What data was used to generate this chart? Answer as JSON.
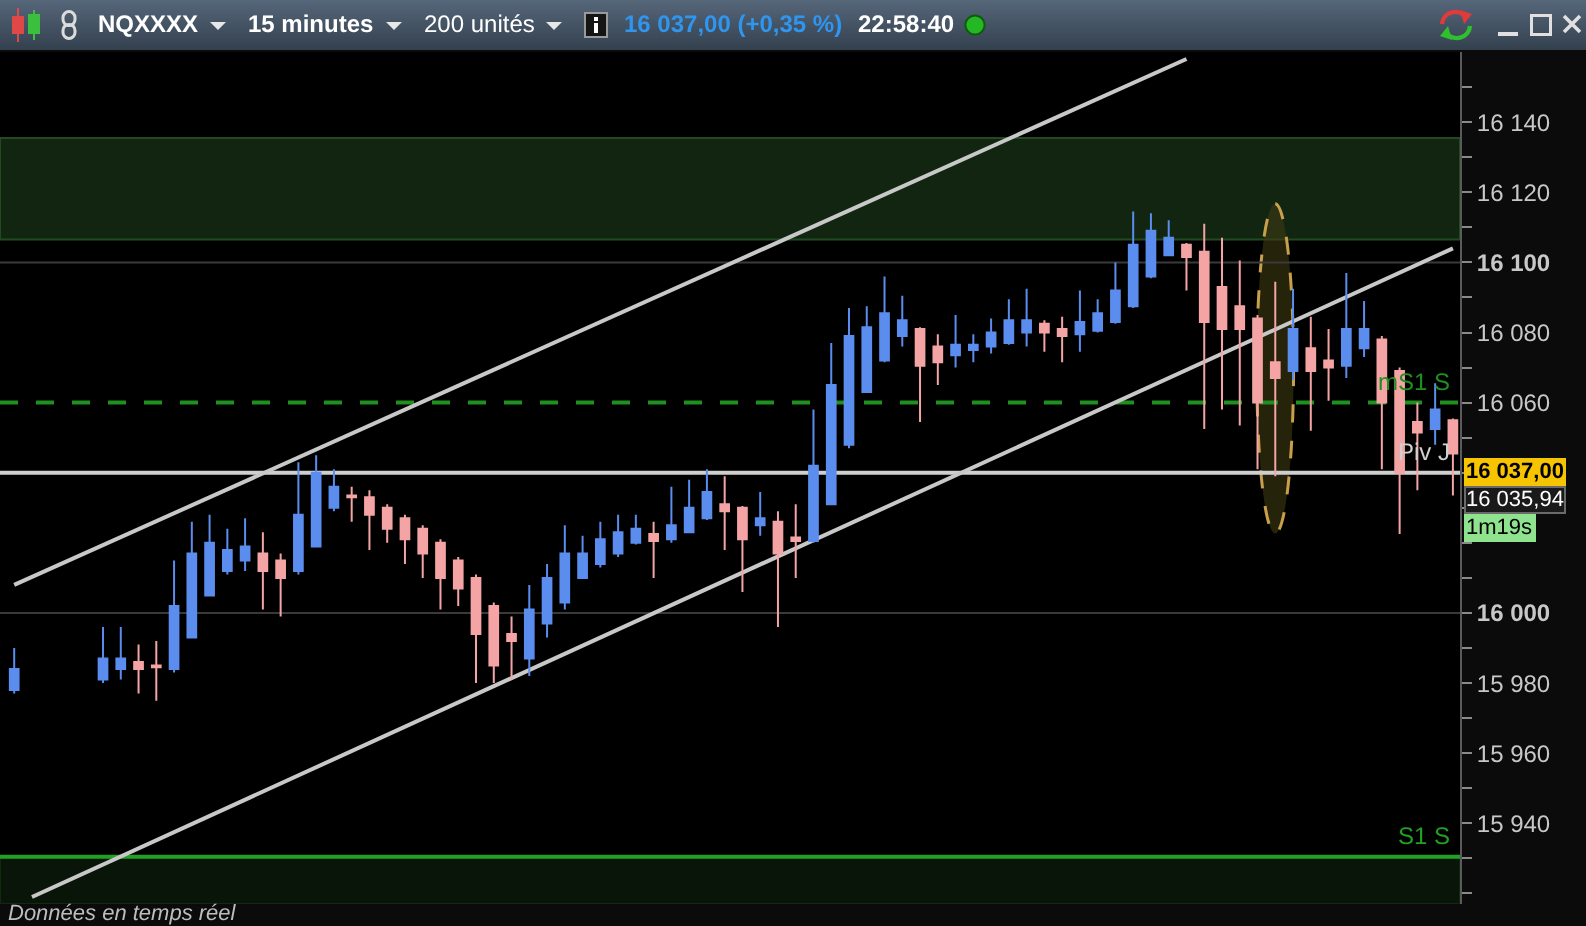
{
  "chart_data": {
    "type": "candlestick",
    "title": "NQXXXX",
    "categories": [
      null,
      null,
      null,
      null,
      null,
      null,
      null,
      null,
      null,
      null,
      null,
      null,
      null,
      null,
      null,
      null,
      null,
      null,
      null,
      null,
      null,
      null,
      null,
      null,
      null,
      null,
      null,
      null,
      null,
      null,
      null,
      null,
      null,
      null,
      null,
      null,
      null,
      null,
      null,
      null,
      null,
      null,
      null,
      null,
      null,
      null,
      null,
      null,
      null,
      null,
      null,
      null,
      null,
      null,
      null,
      null,
      null,
      null,
      null,
      null,
      null,
      null,
      null,
      null,
      null,
      null,
      null,
      null,
      null,
      null,
      null,
      null,
      null,
      null,
      null,
      null,
      null,
      null,
      null,
      null,
      null,
      null
    ],
    "ohlc": [
      [
        15978,
        15990,
        15977,
        15984
      ],
      null,
      null,
      null,
      null,
      [
        15981,
        15996,
        15980,
        15987
      ],
      [
        15984,
        15996,
        15981,
        15987
      ],
      [
        15986,
        15991,
        15977,
        15984
      ],
      [
        15985,
        15992,
        15975,
        15984.5
      ],
      [
        15984,
        16015,
        15983,
        16002
      ],
      [
        15993,
        16026,
        15993,
        16017
      ],
      [
        16005,
        16028,
        16005,
        16020
      ],
      [
        16012,
        16024,
        16011,
        16018
      ],
      [
        16015,
        16027,
        16012,
        16019
      ],
      [
        16017,
        16023,
        16001,
        16012
      ],
      [
        16015,
        16017,
        15999,
        16010
      ],
      [
        16012,
        16043,
        16011,
        16028
      ],
      [
        16019,
        16045,
        16019,
        16040
      ],
      [
        16030,
        16041,
        16029,
        16036
      ],
      [
        16033.5,
        16036,
        16026,
        16033
      ],
      [
        16033,
        16035,
        16018,
        16028
      ],
      [
        16030,
        16031,
        16020,
        16024
      ],
      [
        16027,
        16028,
        16014,
        16021
      ],
      [
        16024,
        16025,
        16010,
        16017
      ],
      [
        16020,
        16021,
        16001,
        16010
      ],
      [
        16015,
        16016,
        16002,
        16007
      ],
      [
        16010,
        16011,
        15980,
        15994
      ],
      [
        16002,
        16003,
        15980,
        15985
      ],
      [
        15994,
        15999,
        15981,
        15992
      ],
      [
        15987,
        16008,
        15982,
        16001
      ],
      [
        15997,
        16014,
        15993,
        16010
      ],
      [
        16003,
        16025,
        16001,
        16017
      ],
      [
        16010,
        16022,
        16010,
        16017
      ],
      [
        16014,
        16026,
        16013,
        16021
      ],
      [
        16017,
        16028,
        16016,
        16023
      ],
      [
        16020,
        16028,
        16019.5,
        16024
      ],
      [
        16022.5,
        16026,
        16010,
        16020.5
      ],
      [
        16021,
        16036,
        16020,
        16025
      ],
      [
        16023,
        16038,
        16023,
        16030
      ],
      [
        16027,
        16041,
        16026.5,
        16034.5
      ],
      [
        16031,
        16039,
        16018,
        16029
      ],
      [
        16030,
        16030.5,
        16006,
        16021
      ],
      [
        16025,
        16034.5,
        16022,
        16027
      ],
      [
        16026,
        16029,
        15996,
        16017
      ],
      [
        16021.5,
        16031,
        16010,
        16020.5
      ],
      [
        16020.5,
        16058,
        16020,
        16042
      ],
      [
        16031,
        16077,
        16031,
        16065
      ],
      [
        16048,
        16087,
        16047,
        16079
      ],
      [
        16063,
        16087.5,
        16063,
        16081.5
      ],
      [
        16072,
        16096,
        16071.5,
        16085.5
      ],
      [
        16079,
        16090.5,
        16076,
        16083.5
      ],
      [
        16081,
        16081.5,
        16054.5,
        16070.5
      ],
      [
        16076,
        16079.5,
        16065,
        16071.5
      ],
      [
        16073.5,
        16085,
        16070,
        16076.5
      ],
      [
        16075,
        16079.5,
        16071.5,
        16076.5
      ],
      [
        16076,
        16084,
        16074,
        16080
      ],
      [
        16077,
        16089.5,
        16076.5,
        16083.5
      ],
      [
        16080,
        16092.5,
        16076,
        16083.5
      ],
      [
        16082.5,
        16083.5,
        16074.5,
        16080
      ],
      [
        16081,
        16084.5,
        16071.5,
        16079
      ],
      [
        16079.5,
        16092,
        16074.5,
        16083
      ],
      [
        16080.5,
        16089.5,
        16080,
        16085.5
      ],
      [
        16083,
        16100,
        16082.5,
        16092
      ],
      [
        16087.5,
        16114.5,
        16087,
        16105
      ],
      [
        16096,
        16114,
        16095.5,
        16109
      ],
      [
        16102,
        16112,
        16102,
        16107
      ],
      [
        16105,
        16105.5,
        16092,
        16101.5
      ],
      [
        16103,
        16111,
        16052.5,
        16083
      ],
      [
        16093,
        16107,
        16058,
        16081
      ],
      [
        16087.5,
        16100.5,
        16053.5,
        16081
      ],
      [
        16084,
        16085,
        16041,
        16060
      ],
      [
        16071.5,
        16094.5,
        16039,
        16067
      ],
      [
        16069,
        16092.5,
        16066.5,
        16081
      ],
      [
        16075.5,
        16084.5,
        16052,
        16069
      ],
      [
        16072,
        16081,
        16060.5,
        16070
      ],
      [
        16070.5,
        16097,
        16067,
        16081
      ],
      [
        16075.5,
        16089,
        16073,
        16081
      ],
      [
        16078,
        16079,
        16041,
        16060
      ],
      [
        16069,
        16070,
        16022.5,
        16040
      ],
      [
        16054.5,
        16060,
        16035,
        16051.5
      ],
      [
        16052.5,
        16065.5,
        16048,
        16058
      ],
      [
        16055,
        16055.5,
        16033.5,
        16045.5
      ]
    ],
    "colors": [
      "#5b8def",
      null,
      null,
      null,
      null,
      "#5b8def",
      "#5b8def",
      "#f4a4a4",
      "#f4a4a4",
      "#5b8def",
      "#5b8def",
      "#5b8def",
      "#5b8def",
      "#5b8def",
      "#f4a4a4",
      "#f4a4a4",
      "#5b8def",
      "#5b8def",
      "#5b8def",
      "#f4a4a4",
      "#f4a4a4",
      "#f4a4a4",
      "#f4a4a4",
      "#f4a4a4",
      "#f4a4a4",
      "#f4a4a4",
      "#f4a4a4",
      "#f4a4a4",
      "#f4a4a4",
      "#5b8def",
      "#5b8def",
      "#5b8def",
      "#5b8def",
      "#5b8def",
      "#5b8def",
      "#5b8def",
      "#f4a4a4",
      "#5b8def",
      "#5b8def",
      "#5b8def",
      "#f4a4a4",
      "#f4a4a4",
      "#5b8def",
      "#f4a4a4",
      "#f4a4a4",
      "#5b8def",
      "#5b8def",
      "#5b8def",
      "#5b8def",
      "#5b8def",
      "#5b8def",
      "#f4a4a4",
      "#f4a4a4",
      "#5b8def",
      "#5b8def",
      "#5b8def",
      "#5b8def",
      "#5b8def",
      "#f4a4a4",
      "#f4a4a4",
      "#5b8def",
      "#5b8def",
      "#5b8def",
      "#5b8def",
      "#5b8def",
      "#5b8def",
      "#f4a4a4",
      "#f4a4a4",
      "#f4a4a4",
      "#f4a4a4",
      "#f4a4a4",
      "#f4a4a4",
      "#5b8def",
      "#f4a4a4",
      "#f4a4a4",
      "#5b8def",
      "#5b8def",
      "#f4a4a4",
      "#f4a4a4",
      "#f4a4a4",
      "#5b8def",
      "#f4a4a4"
    ],
    "series": [
      {
        "type": "line",
        "color": "#c8c8c8",
        "values": [
          16008,
          null,
          null,
          null,
          null,
          null,
          null,
          null,
          null,
          null,
          null,
          null,
          null,
          null,
          null,
          null,
          null,
          null,
          null,
          null,
          null,
          null,
          null,
          null,
          null,
          null,
          null,
          null,
          null,
          null,
          null,
          null,
          null,
          null,
          null,
          null,
          null,
          null,
          null,
          null,
          null,
          null,
          null,
          null,
          null,
          null,
          null,
          null,
          null,
          null,
          null,
          null,
          null,
          null,
          null,
          null,
          null,
          null,
          null,
          null,
          null,
          null,
          null,
          null,
          null,
          null,
          16158,
          null,
          null,
          null,
          null,
          null,
          null,
          null,
          null,
          null,
          null,
          null,
          null,
          null,
          null,
          null
        ]
      },
      {
        "type": "line",
        "color": "#c8c8c8",
        "values": [
          null,
          15919,
          null,
          null,
          null,
          null,
          null,
          null,
          null,
          null,
          null,
          null,
          null,
          null,
          null,
          null,
          null,
          null,
          null,
          null,
          null,
          null,
          null,
          null,
          null,
          null,
          null,
          null,
          null,
          null,
          null,
          null,
          null,
          null,
          null,
          null,
          null,
          null,
          null,
          null,
          null,
          null,
          null,
          null,
          null,
          null,
          null,
          null,
          null,
          null,
          null,
          null,
          null,
          null,
          null,
          null,
          null,
          null,
          null,
          null,
          null,
          null,
          null,
          null,
          null,
          null,
          null,
          null,
          null,
          null,
          null,
          null,
          null,
          null,
          null,
          null,
          null,
          null,
          null,
          null,
          null,
          16104
        ]
      }
    ],
    "ylim": [
      15917,
      16160
    ],
    "yticks": [
      {
        "value": 15920,
        "label": null
      },
      {
        "value": 15930,
        "label": null
      },
      {
        "value": 15940,
        "label": "15 940"
      },
      {
        "value": 15950,
        "label": null
      },
      {
        "value": 15960,
        "label": "15 960"
      },
      {
        "value": 15970,
        "label": null
      },
      {
        "value": 15980,
        "label": "15 980"
      },
      {
        "value": 15990,
        "label": null
      },
      {
        "value": 16000,
        "label": "16 000"
      },
      {
        "value": 16010,
        "label": null
      },
      {
        "value": 16020,
        "label": null
      },
      {
        "value": 16030,
        "label": null
      },
      {
        "value": 16040,
        "label": null
      },
      {
        "value": 16050,
        "label": null
      },
      {
        "value": 16060,
        "label": "16 060"
      },
      {
        "value": 16070,
        "label": null
      },
      {
        "value": 16080,
        "label": "16 080"
      },
      {
        "value": 16090,
        "label": null
      },
      {
        "value": 16100,
        "label": "16 100"
      },
      {
        "value": 16110,
        "label": null
      },
      {
        "value": 16120,
        "label": "16 120"
      },
      {
        "value": 16130,
        "label": null
      },
      {
        "value": 16140,
        "label": "16 140"
      },
      {
        "value": 16150,
        "label": null
      }
    ],
    "tick_labels": "y",
    "ref_lines": [
      {
        "axis": "y",
        "value": 16100,
        "color": "#3a3a3a"
      },
      {
        "axis": "y",
        "value": 16000,
        "color": "#3a3a3a"
      },
      {
        "axis": "y",
        "value": 16060,
        "label": "mS1 S",
        "color": "#1f8f1f",
        "line_style": "dashed"
      },
      {
        "axis": "y",
        "value": 16040,
        "label": "Piv J",
        "color": "#cfcfcf"
      },
      {
        "axis": "y",
        "value": 15930.5,
        "label": "S1 S",
        "color": "#22a022"
      }
    ],
    "bands": [
      {
        "axis": "y",
        "from": 16106.5,
        "to": 16135.5,
        "color": "#224a22"
      },
      {
        "axis": "y",
        "from": 15917,
        "to": 15930.5,
        "color": "#0f2a0f"
      }
    ],
    "annotations": [
      "15 minutes",
      "200 unités",
      "16 037,00 (+0,35 %)",
      "22:58:40",
      "16 037,00",
      "16 035,94",
      "1m19s",
      "Données en temps réel"
    ]
  }
}
